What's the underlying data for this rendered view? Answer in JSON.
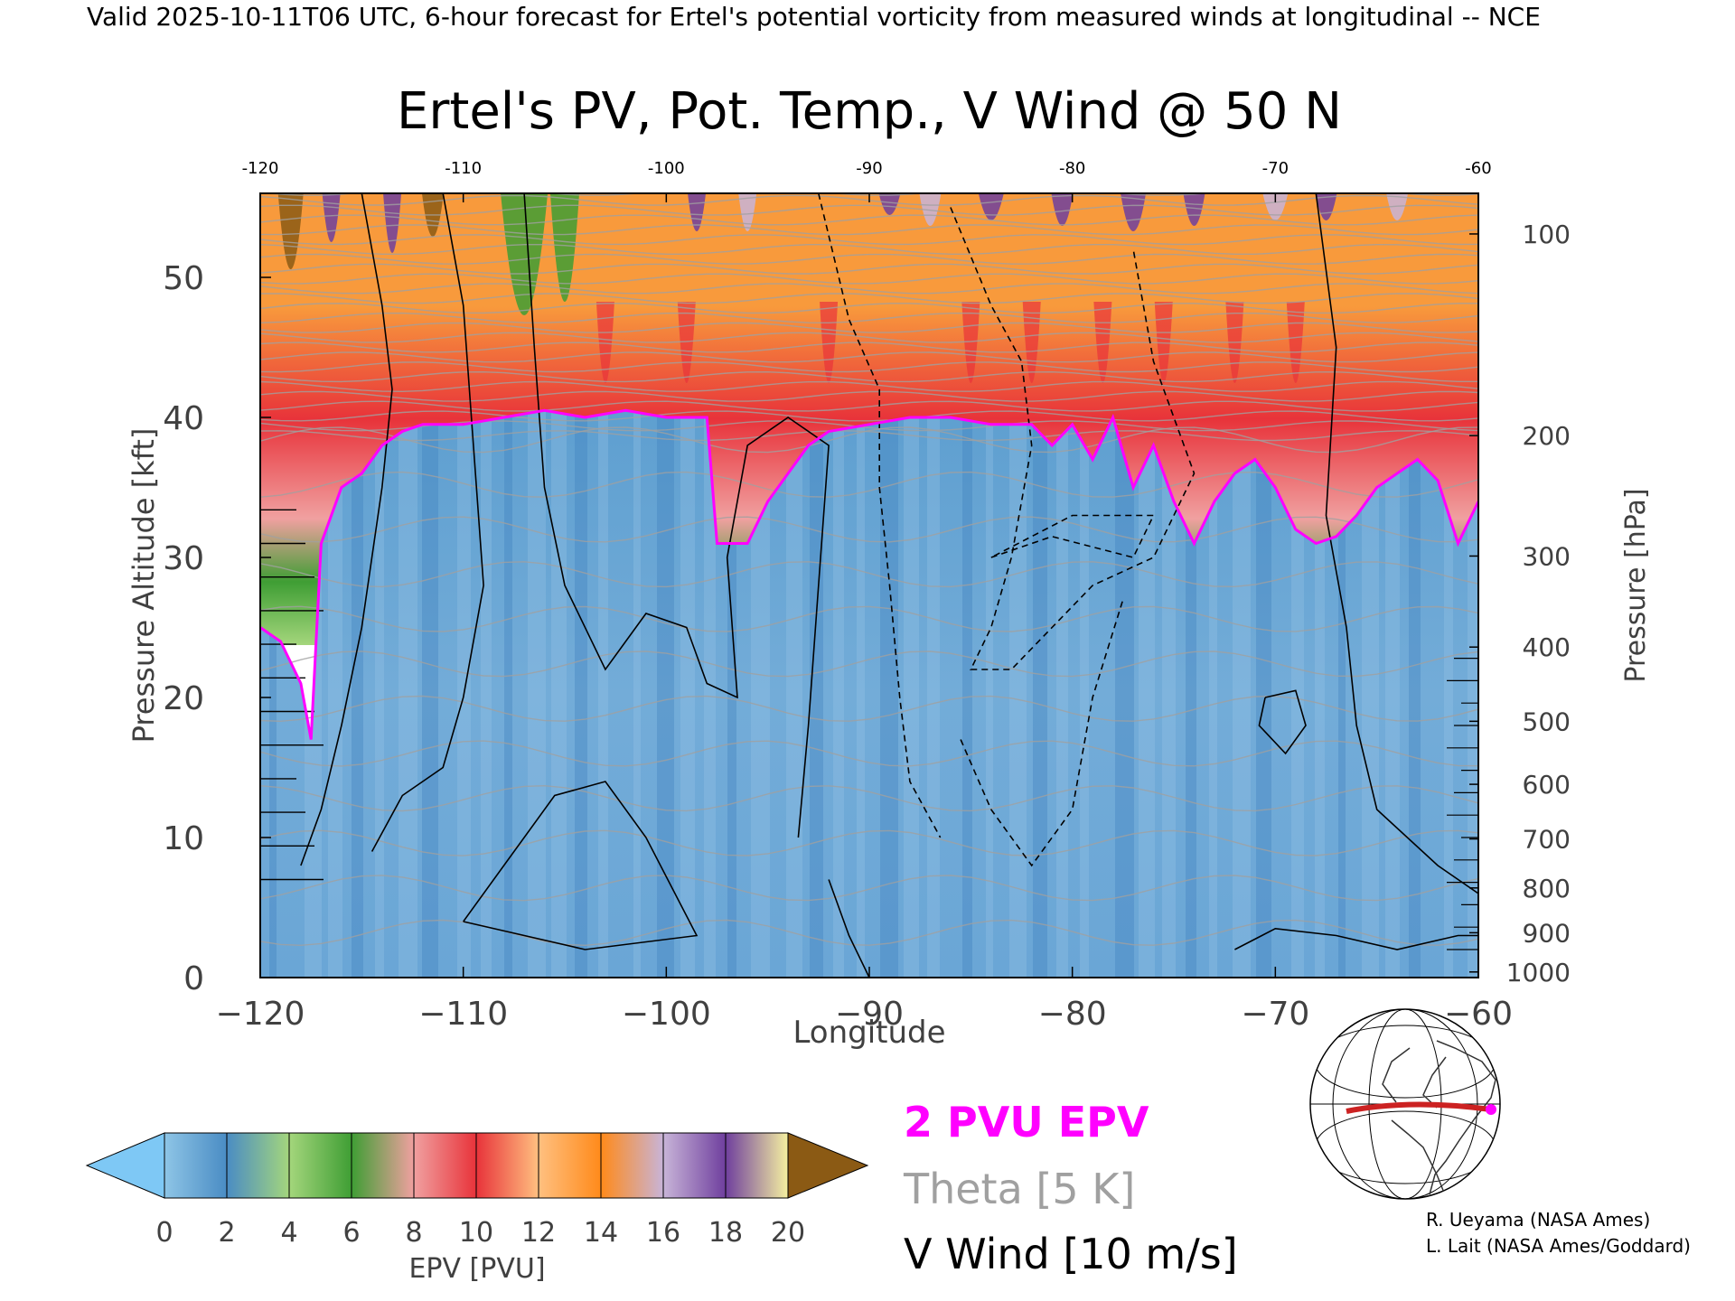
{
  "header": {
    "valid_line": "Valid 2025-10-11T06 UTC, 6-hour forecast for Ertel's potential vorticity from measured winds at longitudinal -- NCE"
  },
  "chart_data": {
    "type": "heatmap",
    "title": "Ertel's PV, Pot. Temp., V Wind @ 50 N",
    "xlabel": "Longitude",
    "ylabel": "Pressure Altitude [kft]",
    "y2label": "Pressure [hPa]",
    "xlim": [
      -120,
      -60
    ],
    "ylim": [
      0,
      56
    ],
    "x_ticks": [
      -120,
      -110,
      -100,
      -90,
      -80,
      -70,
      -60
    ],
    "x_tick_labels": [
      "−120",
      "−110",
      "−100",
      "−90",
      "−80",
      "−70",
      "−60"
    ],
    "x_top_tick_labels": [
      "-120",
      "-110",
      "-100",
      "-90",
      "-80",
      "-70",
      "-60"
    ],
    "y_ticks": [
      0,
      10,
      20,
      30,
      40,
      50
    ],
    "y_tick_labels": [
      "0",
      "10",
      "20",
      "30",
      "40",
      "50"
    ],
    "pressure_ticks": [
      {
        "hpa": 100,
        "kft": 53.1
      },
      {
        "hpa": 200,
        "kft": 38.7
      },
      {
        "hpa": 300,
        "kft": 30.1
      },
      {
        "hpa": 400,
        "kft": 23.6
      },
      {
        "hpa": 500,
        "kft": 18.3
      },
      {
        "hpa": 600,
        "kft": 13.8
      },
      {
        "hpa": 700,
        "kft": 9.9
      },
      {
        "hpa": 800,
        "kft": 6.4
      },
      {
        "hpa": 900,
        "kft": 3.2
      },
      {
        "hpa": 1000,
        "kft": 0.4
      }
    ],
    "pv_2pvu_altitude": {
      "lon": [
        -120,
        -119,
        -118,
        -117.5,
        -117,
        -116,
        -115,
        -114,
        -113,
        -112,
        -110,
        -108,
        -106,
        -104,
        -102,
        -100,
        -98,
        -97.5,
        -97,
        -96,
        -95,
        -94,
        -93,
        -92,
        -90,
        -88,
        -86,
        -84,
        -82,
        -81,
        -80,
        -79,
        -78,
        -77,
        -76,
        -75,
        -74,
        -73,
        -72,
        -71,
        -70,
        -69,
        -68,
        -67,
        -66,
        -65,
        -64,
        -63,
        -62,
        -61,
        -60
      ],
      "kft": [
        25,
        24,
        21,
        17,
        31,
        35,
        36,
        38,
        39,
        39.5,
        39.5,
        40,
        40.5,
        40,
        40.5,
        40,
        40,
        31,
        31,
        31,
        34,
        36,
        38,
        39,
        39.5,
        40,
        40,
        39.5,
        39.5,
        38,
        39.5,
        37,
        40,
        35,
        38,
        34,
        31,
        34,
        36,
        37,
        35,
        32,
        31,
        31.5,
        33,
        35,
        36,
        37,
        35.5,
        31,
        34
      ]
    },
    "colorbar": {
      "label": "EPV [PVU]",
      "ticks": [
        "0",
        "2",
        "4",
        "6",
        "8",
        "10",
        "12",
        "14",
        "16",
        "18",
        "20"
      ],
      "colors": [
        "#8ec5e6",
        "#4a8cc4",
        "#a4d67c",
        "#3f9e34",
        "#f0a0a0",
        "#e8333a",
        "#ffc080",
        "#ff8a1a",
        "#c8b4d8",
        "#6f3f9e",
        "#f5f0a0",
        "#8b5a14"
      ],
      "under_color": "#7ec8f5",
      "over_color": "#8b5a14"
    },
    "legend": {
      "pv_line": "2 PVU EPV",
      "theta": "Theta [5 K]",
      "wind": "V Wind [10 m/s]"
    },
    "colors": {
      "pv_line": "#ff00ff",
      "theta": "#a0a0a0",
      "wind": "#000000",
      "troposphere": "#6fa8d4",
      "stratosphere": "#f89a3c"
    }
  },
  "credits": {
    "line1": "R. Ueyama (NASA Ames)",
    "line2": "L. Lait (NASA Ames/Goddard)"
  },
  "inset_map": {
    "icon": "globe-map-icon",
    "path_color": "#cc2222",
    "marker_color": "#ff00ff"
  }
}
